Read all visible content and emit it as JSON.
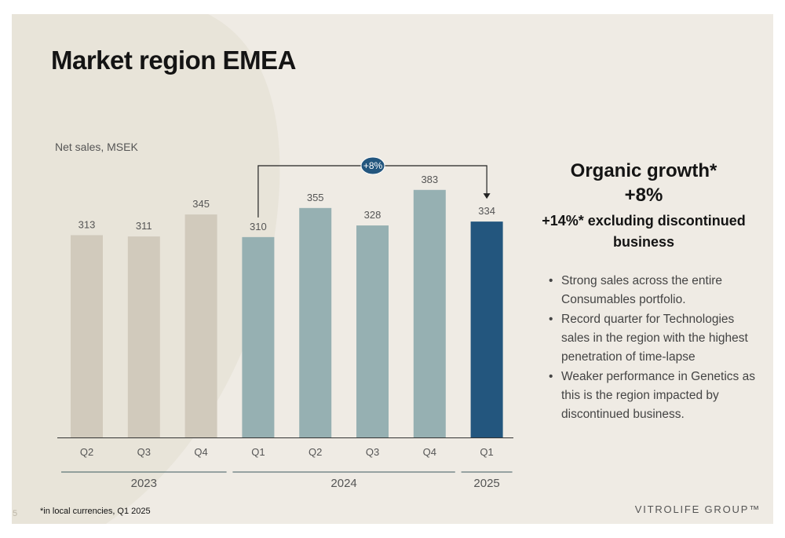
{
  "title": "Market region EMEA",
  "colors": {
    "bar_2023": "#d1cabc",
    "bar_2024": "#96b0b2",
    "bar_2025": "#23567e",
    "growth_badge": "#23567e",
    "background": "#efebe4"
  },
  "chart_data": {
    "type": "bar",
    "title": "",
    "ylabel": "Net sales, MSEK",
    "xlabel": "",
    "ylim": [
      0,
      400
    ],
    "grid": false,
    "categories": [
      "Q2",
      "Q3",
      "Q4",
      "Q1",
      "Q2",
      "Q3",
      "Q4",
      "Q1"
    ],
    "years": [
      "2023",
      "2023",
      "2023",
      "2024",
      "2024",
      "2024",
      "2024",
      "2025"
    ],
    "values": [
      313,
      311,
      345,
      310,
      355,
      328,
      383,
      334
    ],
    "year_groups": [
      {
        "label": "2023",
        "start": 0,
        "end": 2
      },
      {
        "label": "2024",
        "start": 3,
        "end": 6
      },
      {
        "label": "2025",
        "start": 7,
        "end": 7
      }
    ],
    "annotation": {
      "label": "+8%",
      "from_index": 3,
      "to_index": 7
    }
  },
  "side_panel": {
    "heading": "Organic growth*",
    "value": "+8%",
    "subheading": "+14%* excluding discontinued business",
    "bullets": [
      "Strong sales across the entire Consumables portfolio.",
      "Record quarter for Technologies sales in the region with the highest penetration of time-lapse",
      "Weaker performance in Genetics as this is the region impacted by discontinued business."
    ]
  },
  "footnote": "*in local currencies, Q1 2025",
  "page_number": "5",
  "logo": "VITROLIFE GROUP™"
}
